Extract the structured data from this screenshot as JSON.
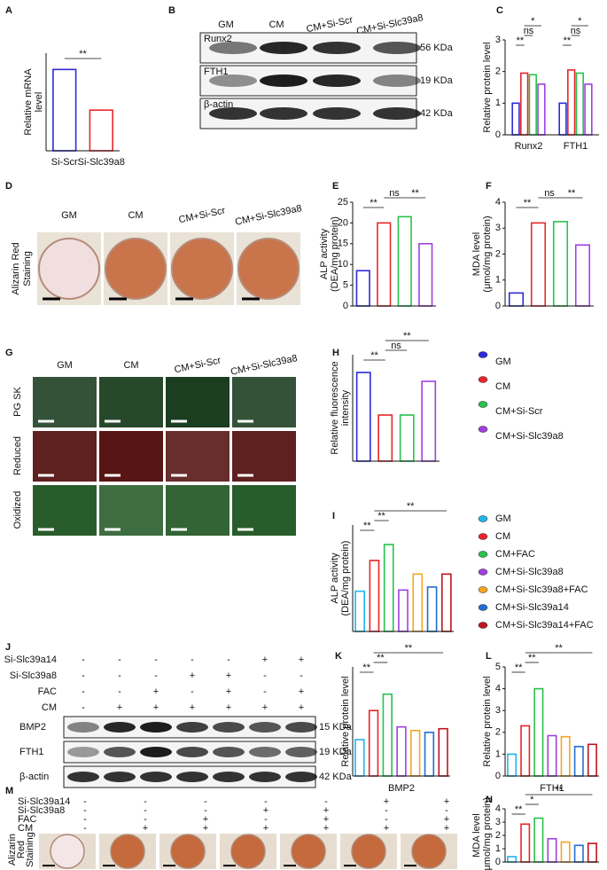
{
  "chart_data": [
    {
      "type": "bar",
      "label": "A",
      "ylabel": [
        "Relative mRNA",
        "level"
      ],
      "categories": [
        "Si-Scr",
        "Si-Slc39a8"
      ],
      "values": [
        1.0,
        0.5
      ],
      "colors": [
        "#2b2bd9",
        "#e8262a"
      ],
      "ylim": [
        0,
        1.2
      ],
      "annotations": [
        "**"
      ]
    },
    {
      "type": "bar",
      "label": "C",
      "ylabel": [
        "Relative protein level"
      ],
      "categories": [
        "Runx2",
        "FTH1"
      ],
      "series": [
        {
          "color": "#2b2bd9",
          "values": [
            1.0,
            1.0
          ]
        },
        {
          "color": "#e8262a",
          "values": [
            1.95,
            2.05
          ]
        },
        {
          "color": "#27c24c",
          "values": [
            1.9,
            1.95
          ]
        },
        {
          "color": "#a040e0",
          "values": [
            1.6,
            1.6
          ]
        }
      ],
      "ylim": [
        0,
        3
      ],
      "yticks": [
        0,
        1,
        2,
        3
      ],
      "annotations": [
        "**",
        "ns",
        "*",
        "**",
        "ns",
        "*"
      ]
    },
    {
      "type": "bar",
      "label": "E",
      "ylabel": [
        "ALP activity",
        "(DEA/mg protein)"
      ],
      "values": [
        8.5,
        20,
        21.5,
        15
      ],
      "colors": [
        "#2b2bd9",
        "#e8262a",
        "#27c24c",
        "#a040e0"
      ],
      "ylim": [
        0,
        25
      ],
      "yticks": [
        0,
        5,
        10,
        15,
        20,
        25
      ],
      "annotations": [
        "**",
        "ns",
        "**"
      ]
    },
    {
      "type": "bar",
      "label": "F",
      "ylabel": [
        "MDA level",
        "(μmol/mg protein)"
      ],
      "values": [
        0.5,
        3.2,
        3.25,
        2.35
      ],
      "colors": [
        "#2b2bd9",
        "#e8262a",
        "#27c24c",
        "#a040e0"
      ],
      "ylim": [
        0,
        4
      ],
      "yticks": [
        0,
        1,
        2,
        3,
        4
      ],
      "annotations": [
        "**",
        "ns",
        "**"
      ]
    },
    {
      "type": "bar",
      "label": "H",
      "ylabel": [
        "Relative fluorescence",
        "intensity"
      ],
      "values": [
        1.0,
        0.52,
        0.52,
        0.9
      ],
      "colors": [
        "#2b2bd9",
        "#e8262a",
        "#27c24c",
        "#a040e0"
      ],
      "legend": [
        "GM",
        "CM",
        "CM+Si-Scr",
        "CM+Si-Slc39a8"
      ],
      "ylim": [
        0,
        1.2
      ],
      "annotations": [
        "**",
        "ns",
        "**"
      ]
    },
    {
      "type": "bar",
      "label": "I",
      "ylabel": [
        "ALP activity",
        "(DEA/mg protein)"
      ],
      "values": [
        6.8,
        12,
        14.7,
        7,
        9.7,
        7.5,
        9.7
      ],
      "colors": [
        "#1fb5ec",
        "#e8262a",
        "#27c24c",
        "#a040e0",
        "#f5a623",
        "#2070d0",
        "#c0141e"
      ],
      "legend": [
        "GM",
        "CM",
        "CM+FAC",
        "CM+Si-Slc39a8",
        "CM+Si-Slc39a8+FAC",
        "CM+Si-Slc39a14",
        "CM+Si-Slc39a14+FAC"
      ],
      "ylim": [
        0,
        18
      ],
      "annotations": [
        "**",
        "**",
        "**"
      ]
    },
    {
      "type": "bar",
      "label": "K",
      "ylabel": [
        "Relative protein level"
      ],
      "xlabel": "BMP2",
      "values": [
        1.0,
        1.8,
        2.25,
        1.35,
        1.25,
        1.2,
        1.3
      ],
      "colors": [
        "#1fb5ec",
        "#e8262a",
        "#27c24c",
        "#a040e0",
        "#f5a623",
        "#2070d0",
        "#c0141e"
      ],
      "ylim": [
        0,
        3
      ],
      "annotations": [
        "**",
        "**",
        "**"
      ]
    },
    {
      "type": "bar",
      "label": "L",
      "ylabel": [
        "Relative protein level"
      ],
      "xlabel": "FTH1",
      "values": [
        1.0,
        2.3,
        4.0,
        1.85,
        1.8,
        1.35,
        1.45
      ],
      "colors": [
        "#1fb5ec",
        "#e8262a",
        "#27c24c",
        "#a040e0",
        "#f5a623",
        "#2070d0",
        "#c0141e"
      ],
      "ylim": [
        0,
        5
      ],
      "yticks": [
        0,
        1,
        2,
        3,
        4,
        5
      ],
      "annotations": [
        "**",
        "**",
        "**"
      ]
    },
    {
      "type": "bar",
      "label": "N",
      "ylabel": [
        "MDA level",
        "(μmol/mg protein)"
      ],
      "values": [
        0.4,
        2.85,
        3.3,
        1.75,
        1.5,
        1.25,
        1.4
      ],
      "colors": [
        "#1fb5ec",
        "#e8262a",
        "#27c24c",
        "#a040e0",
        "#f5a623",
        "#2070d0",
        "#c0141e"
      ],
      "ylim": [
        0,
        4
      ],
      "yticks": [
        0,
        1,
        2,
        3,
        4
      ],
      "annotations": [
        "**",
        "*",
        "**"
      ]
    }
  ],
  "blot_B": {
    "label": "B",
    "lanes": [
      "GM",
      "CM",
      "CM+Si-Scr",
      "CM+Si-Slc39a8"
    ],
    "rows": [
      {
        "protein": "Runx2",
        "size": "56 KDa"
      },
      {
        "protein": "FTH1",
        "size": "19 KDa"
      },
      {
        "protein": "β-actin",
        "size": "42 KDa"
      }
    ]
  },
  "staining_D": {
    "label": "D",
    "lanes": [
      "GM",
      "CM",
      "CM+Si-Scr",
      "CM+Si-Slc39a8"
    ],
    "row_label": [
      "Alizarin Red",
      "Staining"
    ]
  },
  "imaging_G": {
    "label": "G",
    "lanes": [
      "GM",
      "CM",
      "CM+Si-Scr",
      "CM+Si-Slc39a8"
    ],
    "rows": [
      "PG SK",
      "Reduced",
      "Oxidized"
    ]
  },
  "blot_J": {
    "label": "J",
    "conditions": [
      {
        "name": "Si-Slc39a14",
        "signs": [
          "-",
          "-",
          "-",
          "-",
          "-",
          "+",
          "+"
        ]
      },
      {
        "name": "Si-Slc39a8",
        "signs": [
          "-",
          "-",
          "-",
          "+",
          "+",
          "-",
          "-"
        ]
      },
      {
        "name": "FAC",
        "signs": [
          "-",
          "-",
          "+",
          "-",
          "+",
          "-",
          "+"
        ]
      },
      {
        "name": "CM",
        "signs": [
          "-",
          "+",
          "+",
          "+",
          "+",
          "+",
          "+"
        ]
      }
    ],
    "rows": [
      {
        "protein": "BMP2",
        "size": "15 KDa"
      },
      {
        "protein": "FTH1",
        "size": "19 KDa"
      },
      {
        "protein": "β-actin",
        "size": "42 KDa"
      }
    ]
  },
  "staining_M": {
    "label": "M",
    "conditions": [
      {
        "name": "Si-Slc39a14",
        "signs": [
          "-",
          "-",
          "-",
          "-",
          "-",
          "+",
          "+"
        ]
      },
      {
        "name": "Si-Slc39a8",
        "signs": [
          "-",
          "-",
          "-",
          "+",
          "+",
          "-",
          "-"
        ]
      },
      {
        "name": "FAC",
        "signs": [
          "-",
          "-",
          "+",
          "-",
          "+",
          "-",
          "+"
        ]
      },
      {
        "name": "CM",
        "signs": [
          "-",
          "+",
          "+",
          "+",
          "+",
          "+",
          "+"
        ]
      }
    ],
    "row_label": [
      "Alizarin",
      "Red",
      "Staining"
    ]
  }
}
